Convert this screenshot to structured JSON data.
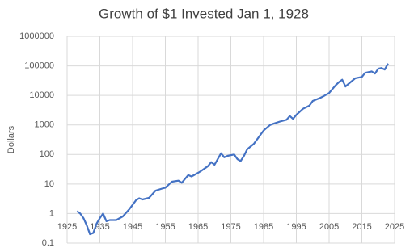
{
  "chart_data": {
    "type": "line",
    "title": "Growth of $1 Invested Jan 1, 1928",
    "y_label": "Dollars",
    "log_scale": true,
    "grid": true,
    "xlim": [
      1925,
      2025
    ],
    "xticks": [
      1925,
      1935,
      1945,
      1955,
      1965,
      1975,
      1985,
      1995,
      2005,
      2015,
      2025
    ],
    "ylim": [
      0.1,
      1000000
    ],
    "yticks": [
      0.1,
      1,
      10,
      100,
      1000,
      10000,
      100000,
      1000000
    ],
    "x": [
      1928,
      1929,
      1930,
      1931,
      1932,
      1933,
      1934,
      1935,
      1936,
      1937,
      1938,
      1940,
      1942,
      1944,
      1946,
      1947,
      1948,
      1950,
      1952,
      1954,
      1955,
      1957,
      1959,
      1960,
      1962,
      1963,
      1965,
      1966,
      1968,
      1969,
      1970,
      1972,
      1973,
      1974,
      1976,
      1977,
      1978,
      1979,
      1980,
      1982,
      1985,
      1987,
      1988,
      1990,
      1992,
      1993,
      1994,
      1995,
      1997,
      1999,
      2000,
      2002,
      2003,
      2005,
      2007,
      2008,
      2009,
      2010,
      2011,
      2013,
      2015,
      2016,
      2018,
      2019,
      2020,
      2021,
      2022,
      2023
    ],
    "series": [
      {
        "name": "Growth of $1",
        "color": "#4472c4",
        "values": [
          1.2,
          1.0,
          0.7,
          0.4,
          0.2,
          0.22,
          0.45,
          0.7,
          1.0,
          0.55,
          0.6,
          0.6,
          0.8,
          1.4,
          2.8,
          3.3,
          3.0,
          3.4,
          6,
          7,
          7.5,
          12,
          13,
          11,
          20,
          18,
          24,
          28,
          40,
          55,
          45,
          110,
          80,
          90,
          100,
          70,
          60,
          90,
          150,
          230,
          650,
          1000,
          1100,
          1300,
          1500,
          2000,
          1600,
          2200,
          3500,
          4500,
          6500,
          8000,
          9000,
          12000,
          22000,
          28000,
          34000,
          20000,
          25000,
          38000,
          42000,
          58000,
          65000,
          55000,
          80000,
          85000,
          75000,
          120000
        ]
      }
    ]
  }
}
